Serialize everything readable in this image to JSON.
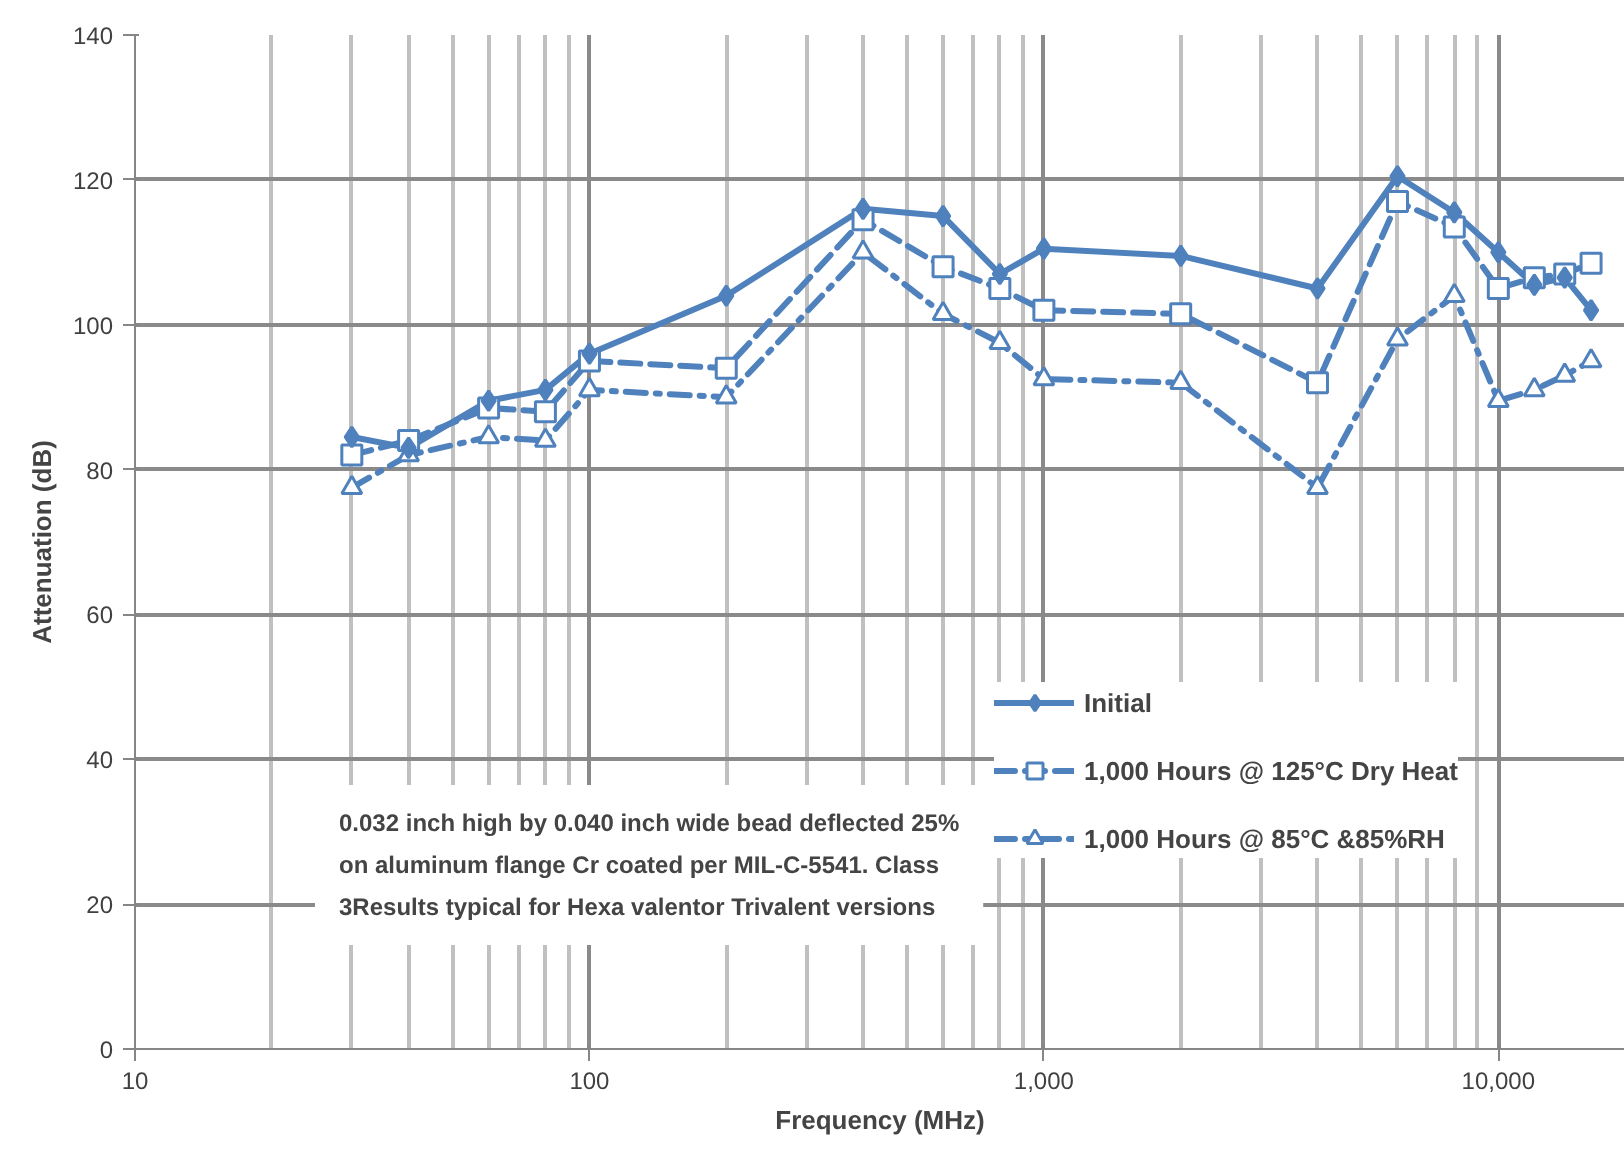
{
  "chart_data": {
    "type": "line",
    "xlabel": "Frequency (MHz)",
    "ylabel": "Attenuation (dB)",
    "log": "x",
    "x": [
      30,
      40,
      60,
      80,
      100,
      200,
      400,
      600,
      800,
      1000,
      2000,
      4000,
      6000,
      8000,
      10000,
      12000,
      14000,
      16000
    ],
    "xlim": [
      10,
      19000
    ],
    "xticks": [
      10,
      100,
      {
        "value": 1000,
        "label": "1,000"
      },
      {
        "value": 10000,
        "label": "10,000"
      }
    ],
    "ylim": [
      0,
      140
    ],
    "yticks": [
      0,
      20,
      40,
      60,
      80,
      100,
      120,
      140
    ],
    "grid": true,
    "legend": "bottom right",
    "series": [
      {
        "name": "Initial",
        "color": "#4f81bd",
        "marker": "diamond",
        "line_style": "solid",
        "values": [
          84.5,
          83,
          89.5,
          91,
          96,
          104,
          116,
          115,
          107,
          110.5,
          109.5,
          105,
          120.5,
          115.5,
          110,
          105.5,
          106.5,
          102
        ]
      },
      {
        "name": "1,000 Hours @ 125°C Dry Heat",
        "color": "#4f81bd",
        "marker": "square",
        "line_style": "dashed",
        "values": [
          82,
          84,
          88.5,
          88,
          95,
          94,
          114.5,
          108,
          105,
          102,
          101.5,
          92,
          117,
          113.5,
          105,
          106.5,
          107,
          108.5
        ]
      },
      {
        "name": "1,000 Hours @ 85°C &85%RH",
        "color": "#4f81bd",
        "marker": "triangle",
        "line_style": "dashdot",
        "values": [
          77.5,
          82,
          84.5,
          84,
          91,
          90,
          110,
          101.5,
          97.5,
          92.5,
          92,
          77.5,
          98,
          104,
          89.5,
          91,
          93,
          95
        ]
      }
    ],
    "annotations": [
      "0.032 inch high by 0.040 inch wide bead deflected 25%\non aluminum flange Cr coated per MIL-C-5541.  Class\n3Results typical for Hexa valentor Trivalent versions"
    ]
  }
}
